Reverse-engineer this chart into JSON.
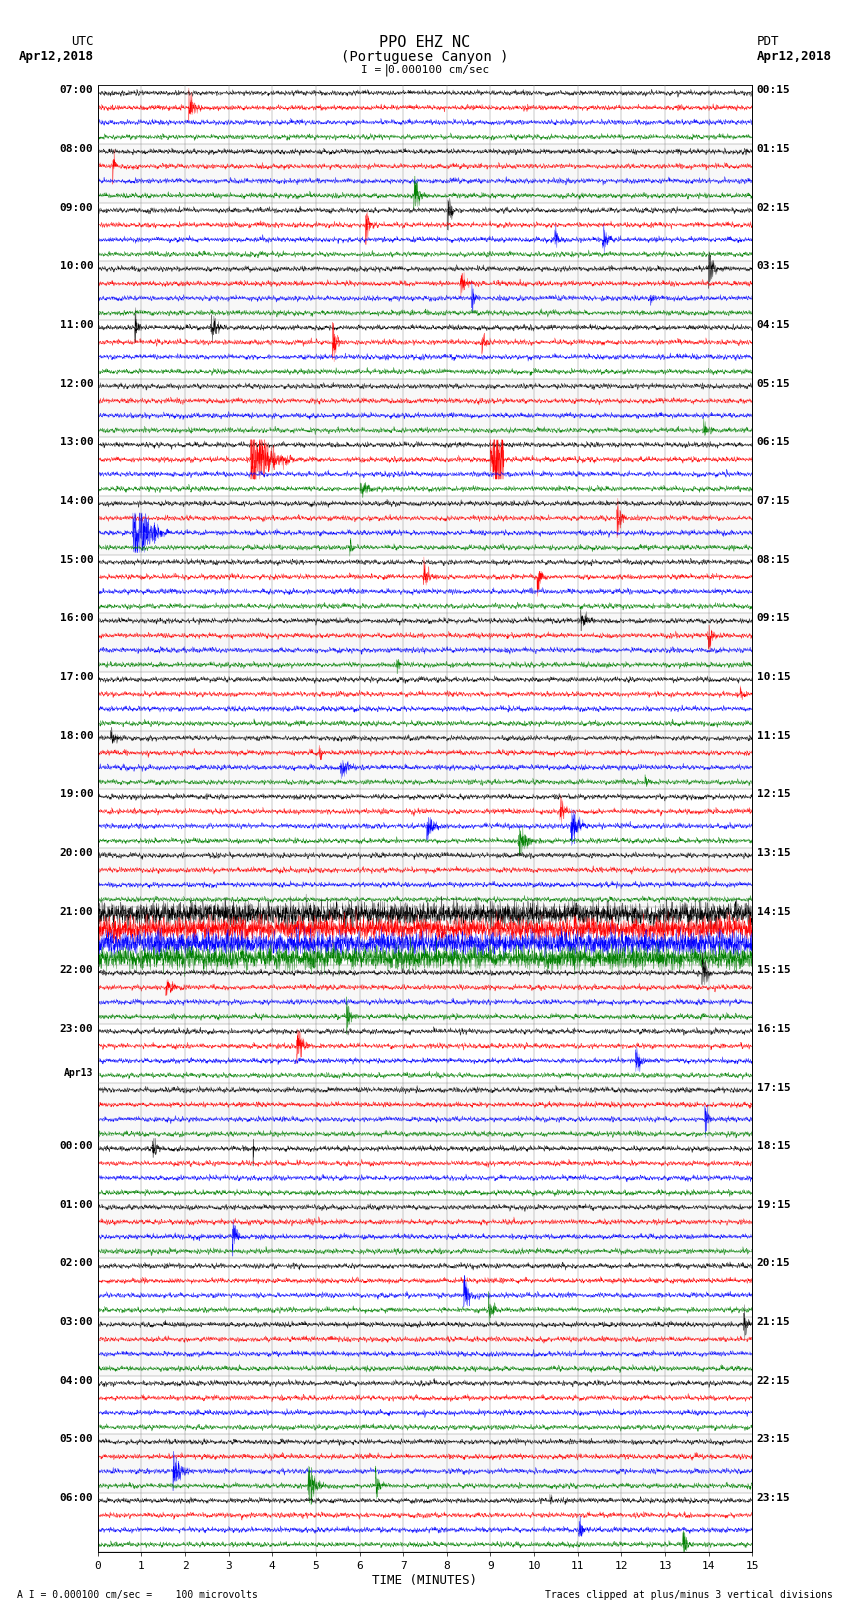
{
  "title_line1": "PPO EHZ NC",
  "title_line2": "(Portuguese Canyon )",
  "scale_text": "I = 0.000100 cm/sec",
  "left_header1": "UTC",
  "left_header2": "Apr12,2018",
  "right_header1": "PDT",
  "right_header2": "Apr12,2018",
  "xlabel": "TIME (MINUTES)",
  "bottom_left": "A I = 0.000100 cm/sec =    100 microvolts",
  "bottom_right": "Traces clipped at plus/minus 3 vertical divisions",
  "colors": [
    "black",
    "red",
    "blue",
    "green"
  ],
  "utc_labels": [
    "07:00",
    "08:00",
    "09:00",
    "10:00",
    "11:00",
    "12:00",
    "13:00",
    "14:00",
    "15:00",
    "16:00",
    "17:00",
    "18:00",
    "19:00",
    "20:00",
    "21:00",
    "22:00",
    "23:00",
    "Apr13",
    "00:00",
    "01:00",
    "02:00",
    "03:00",
    "04:00",
    "05:00",
    "06:00"
  ],
  "utc_is_date": [
    false,
    false,
    false,
    false,
    false,
    false,
    false,
    false,
    false,
    false,
    false,
    false,
    false,
    false,
    false,
    false,
    false,
    true,
    false,
    false,
    false,
    false,
    false,
    false,
    false
  ],
  "pdt_labels": [
    "00:15",
    "01:15",
    "02:15",
    "03:15",
    "04:15",
    "05:15",
    "06:15",
    "07:15",
    "08:15",
    "09:15",
    "10:15",
    "11:15",
    "12:15",
    "13:15",
    "14:15",
    "15:15",
    "16:15",
    "17:15",
    "18:15",
    "19:15",
    "20:15",
    "21:15",
    "22:15",
    "23:15",
    "23:15"
  ],
  "n_rows": 25,
  "n_channels": 4,
  "minutes": 15,
  "seed": 42,
  "lw": 0.5
}
